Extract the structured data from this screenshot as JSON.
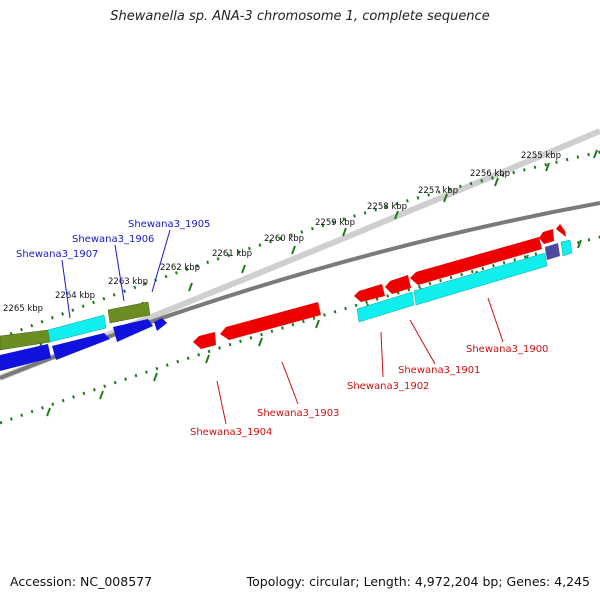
{
  "title": "Shewanella sp. ANA-3 chromosome 1, complete sequence",
  "accession": "Accession: NC_008577",
  "summary": "Topology: circular; Length: 4,972,204 bp; Genes: 4,245",
  "colors": {
    "backbone": "#7a7a7a",
    "ticks": "#1f7a1f",
    "forward_label": "#1a1acc",
    "reverse_label": "#cc1111",
    "red_gene": "#ee0000",
    "cyan_gene": "#11eeee",
    "blue_gene": "#1111dd",
    "olive_gene": "#6b8e23",
    "slate_gene": "#4a4aa0"
  },
  "scale_labels": [
    "2255 kbp",
    "2256 kbp",
    "2257 kbp",
    "2258 kbp",
    "2259 kbp",
    "2260 kbp",
    "2261 kbp",
    "2262 kbp",
    "2263 kbp",
    "2264 kbp",
    "2265 kbp"
  ],
  "forward_gene_labels": [
    "Shewana3_1905",
    "Shewana3_1906",
    "Shewana3_1907"
  ],
  "reverse_gene_labels": [
    "Shewana3_1900",
    "Shewana3_1901",
    "Shewana3_1902",
    "Shewana3_1903",
    "Shewana3_1904"
  ]
}
